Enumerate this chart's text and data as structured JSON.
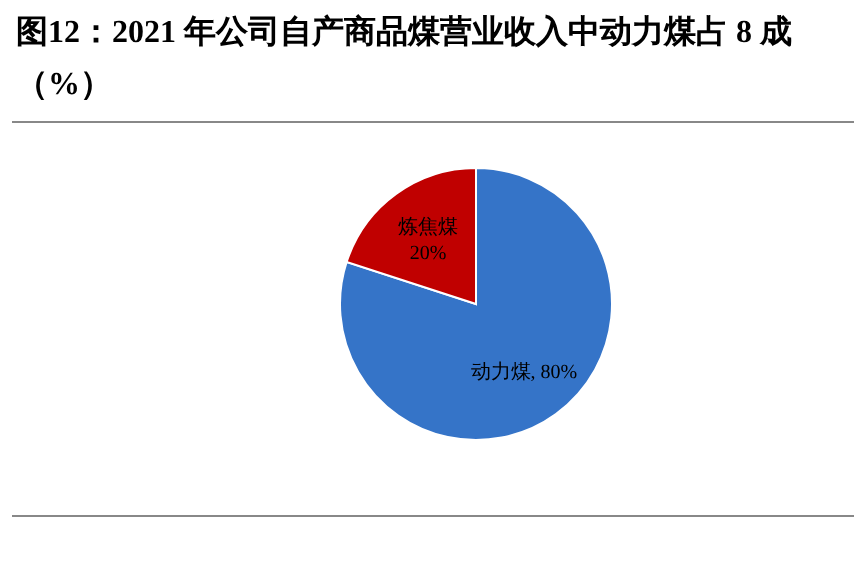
{
  "chart_data": {
    "type": "pie",
    "title": "图12：2021 年公司自产商品煤营业收入中动力煤占 8 成（%）",
    "categories": [
      "动力煤",
      "炼焦煤"
    ],
    "values": [
      80,
      20
    ],
    "colors": [
      "#3574c8",
      "#c00000"
    ],
    "value_labels": [
      ", 80%",
      "20%"
    ],
    "legend": false
  }
}
